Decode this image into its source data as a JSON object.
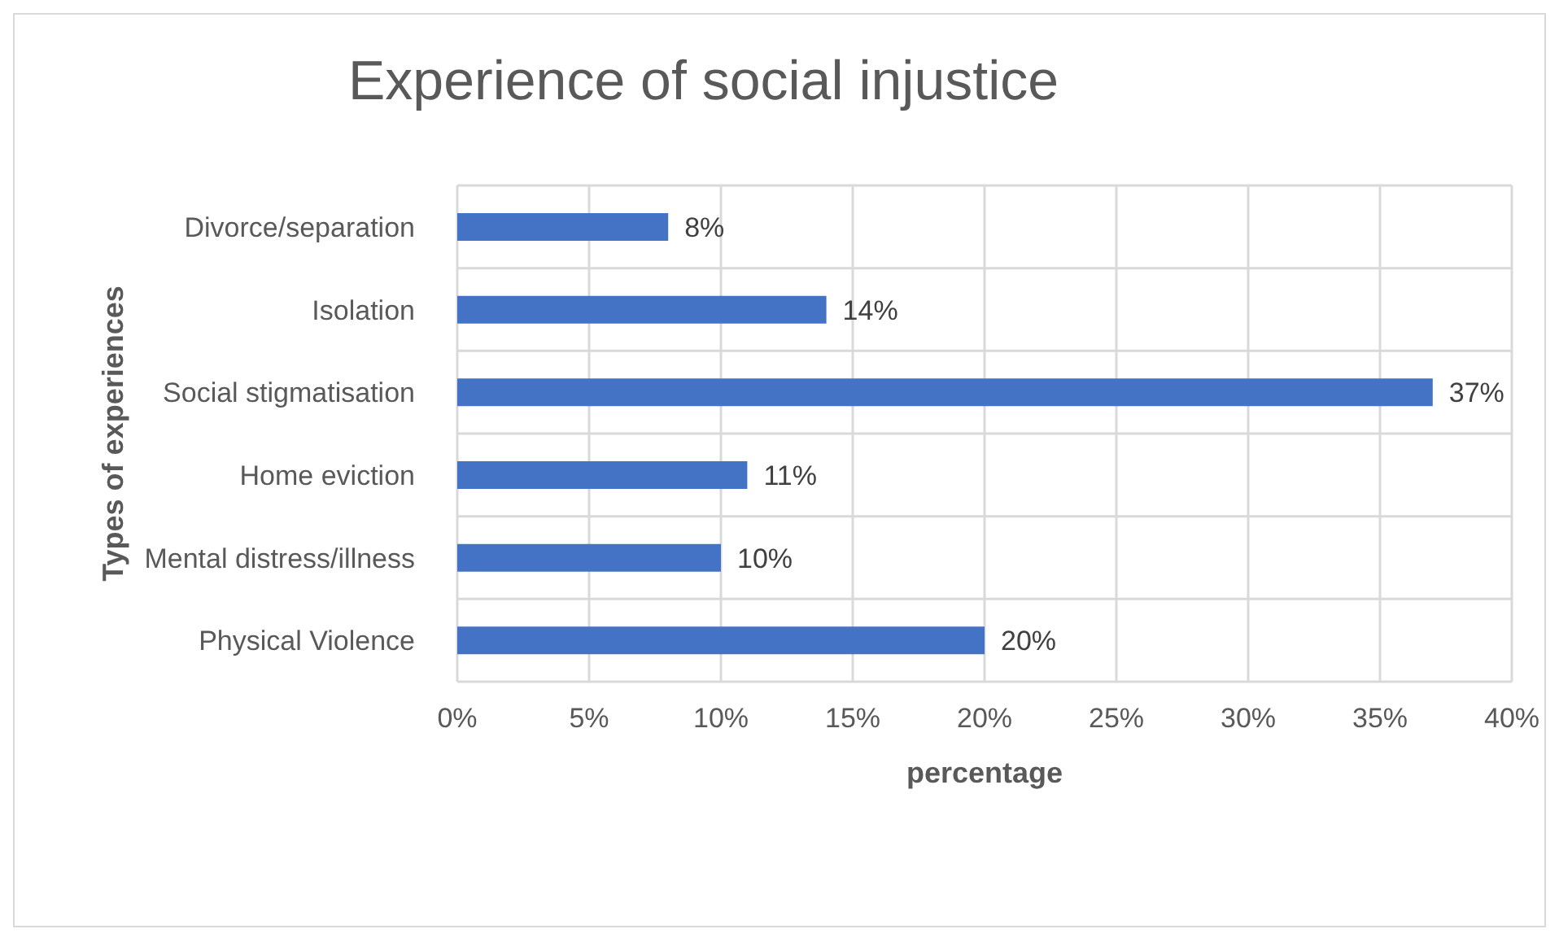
{
  "chart_data": {
    "type": "bar",
    "orientation": "horizontal",
    "title": "Experience of social injustice",
    "xlabel": "percentage",
    "ylabel": "Types of experiences",
    "categories": [
      "Divorce/separation",
      "Isolation",
      "Social stigmatisation",
      "Home eviction",
      "Mental distress/illness",
      "Physical Violence"
    ],
    "values": [
      8,
      14,
      37,
      11,
      10,
      20
    ],
    "value_labels": [
      "8%",
      "14%",
      "37%",
      "11%",
      "10%",
      "20%"
    ],
    "color": "#4472c4",
    "xlim": [
      0,
      40
    ],
    "xticks": [
      {
        "value": 0,
        "label": "0%"
      },
      {
        "value": 5,
        "label": "5%"
      },
      {
        "value": 10,
        "label": "10%"
      },
      {
        "value": 15,
        "label": "15%"
      },
      {
        "value": 20,
        "label": "20%"
      },
      {
        "value": 25,
        "label": "25%"
      },
      {
        "value": 30,
        "label": "30%"
      },
      {
        "value": 35,
        "label": "35%"
      },
      {
        "value": 40,
        "label": "40%"
      }
    ],
    "grid": true
  }
}
